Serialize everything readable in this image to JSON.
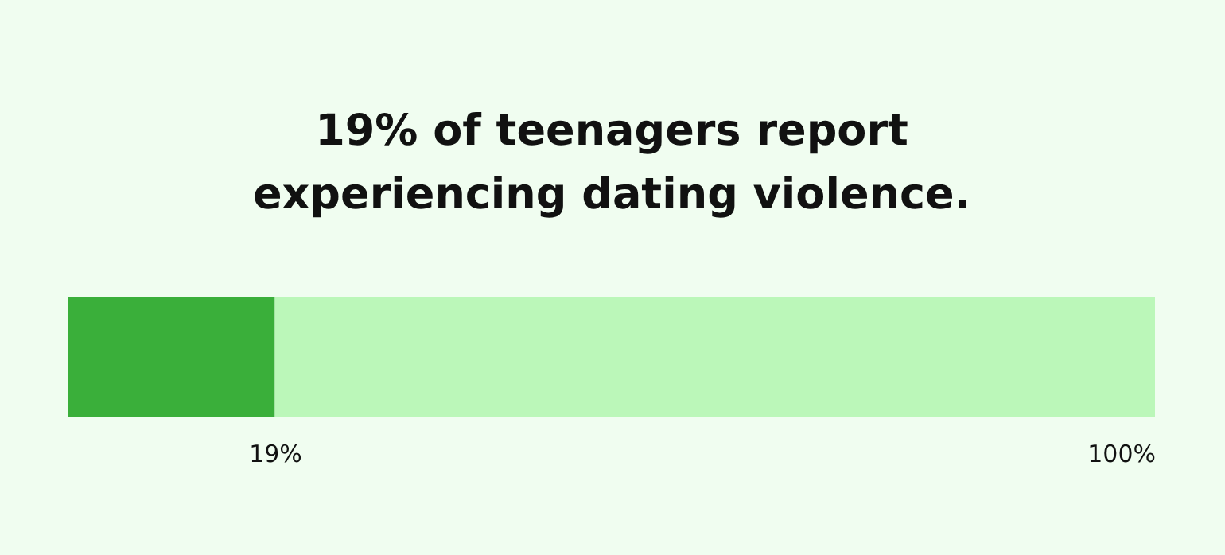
{
  "chart_data": {
    "type": "bar",
    "orientation": "horizontal",
    "stacked": true,
    "title": "19% of teenagers report\nexperiencing dating violence.",
    "categories": [
      null
    ],
    "xlim": [
      0,
      100
    ],
    "xticks": [
      {
        "value": 19,
        "label": "19%"
      },
      {
        "value": 100,
        "label": "100%"
      }
    ],
    "series": [
      {
        "color": "#3aaf3a",
        "values": [
          19
        ]
      },
      {
        "color": "#bbf7b9",
        "values": [
          81
        ]
      }
    ]
  }
}
